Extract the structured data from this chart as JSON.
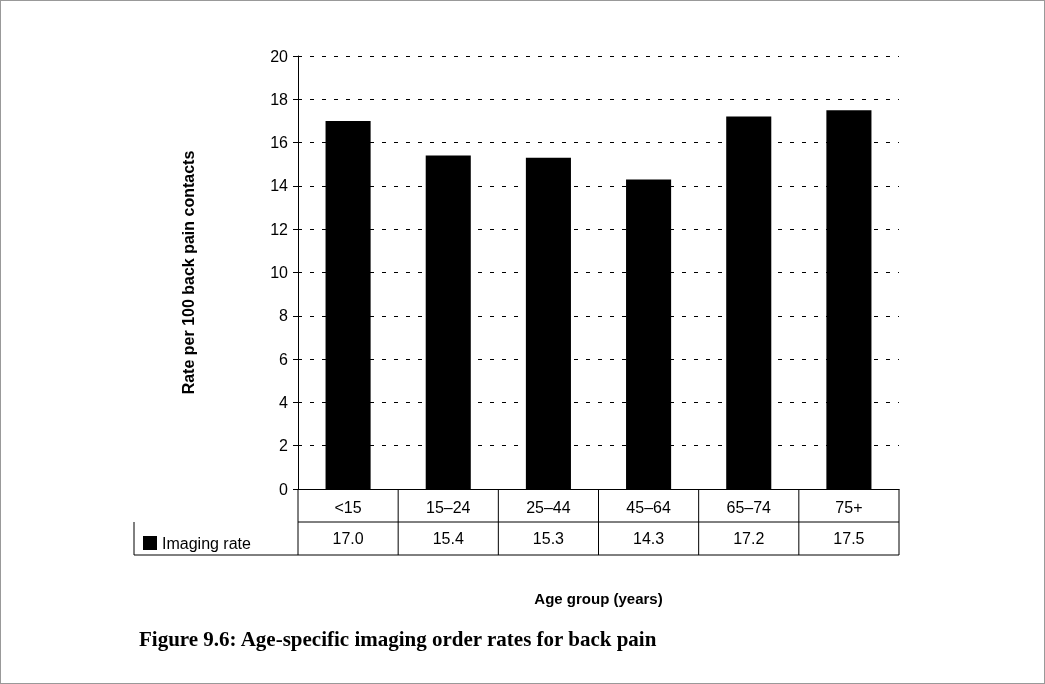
{
  "chart_data": {
    "type": "bar",
    "title": "Figure 9.6: Age-specific imaging order rates for back pain",
    "xlabel": "Age group (years)",
    "ylabel": "Rate per 100 back pain contacts",
    "categories": [
      "<15",
      "15–24",
      "25–44",
      "45–64",
      "65–74",
      "75+"
    ],
    "series": [
      {
        "name": "Imaging rate",
        "color": "#000000",
        "values": [
          17.0,
          15.4,
          15.3,
          14.3,
          17.2,
          17.5
        ],
        "value_labels": [
          "17.0",
          "15.4",
          "15.3",
          "14.3",
          "17.2",
          "17.5"
        ]
      }
    ],
    "ylim": [
      0,
      20
    ],
    "yticks": [
      0,
      2,
      4,
      6,
      8,
      10,
      12,
      14,
      16,
      18,
      20
    ],
    "grid": "y",
    "legend": "bottom left"
  }
}
